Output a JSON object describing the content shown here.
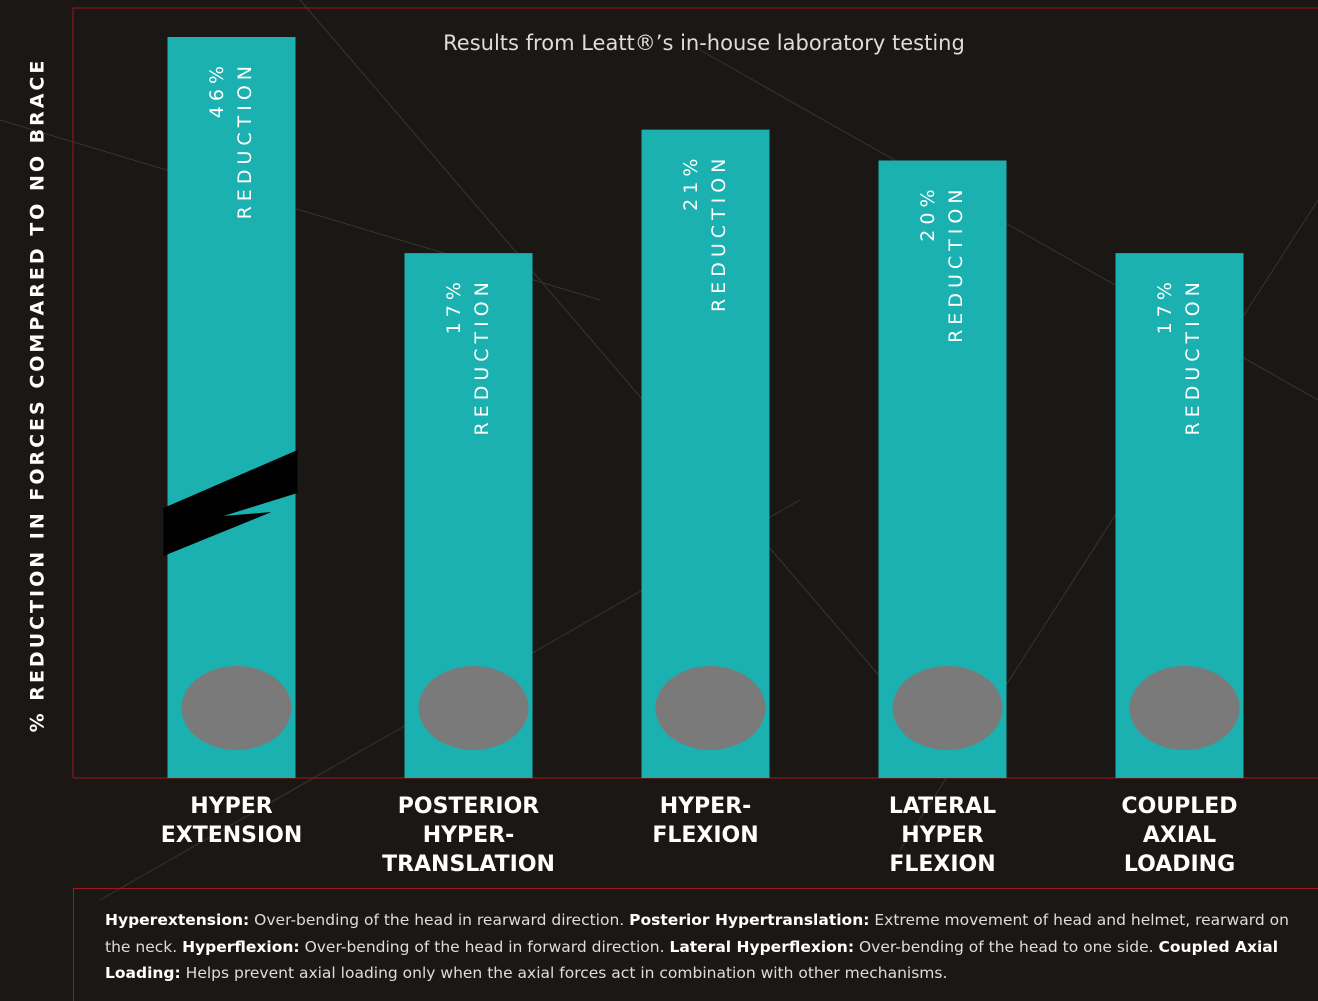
{
  "chart_data": {
    "type": "bar",
    "subtitle": "Results from Leatt®’s in-house laboratory testing",
    "y_label": "% REDUCTION IN FORCES COMPARED TO NO BRACE",
    "categories": [
      "HYPER\nEXTENSION",
      "POSTERIOR\nHYPER-\nTRANSLATION",
      "HYPER-\nFLEXION",
      "LATERAL\nHYPER\nFLEXION",
      "COUPLED\nAXIAL\nLOADING"
    ],
    "values": [
      46,
      17,
      21,
      20,
      17
    ],
    "value_labels": [
      "46%",
      "17%",
      "21%",
      "20%",
      "17%"
    ],
    "bar_annotation": "REDUCTION",
    "color": "#1ab1b0",
    "ylim": [
      0,
      24
    ],
    "broken_axis": true,
    "definitions": [
      {
        "term": "Hyperextension:",
        "text": "Over-bending of the head in rearward direction."
      },
      {
        "term": "Posterior Hypertranslation:",
        "text": "Extreme movement of head and helmet, rearward on the neck."
      },
      {
        "term": "Hyperflexion:",
        "text": "Over-bending of the head in forward direction."
      },
      {
        "term": "Lateral Hyperflexion:",
        "text": "Over-bending of the head to one side."
      },
      {
        "term": "Coupled Axial Loading:",
        "text": "Helps prevent axial loading only when the axial forces act in combination with other mechanisms."
      }
    ]
  }
}
